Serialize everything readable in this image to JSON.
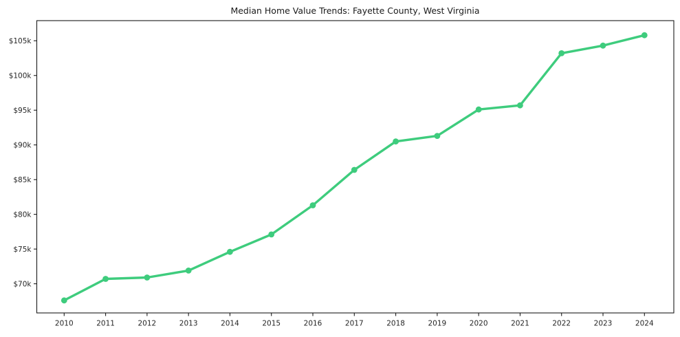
{
  "figure": {
    "background": "#ffffff"
  },
  "chart_data": {
    "type": "line",
    "title": "Median Home Value Trends: Fayette County, West Virginia",
    "categories": [
      "2010",
      "2011",
      "2012",
      "2013",
      "2014",
      "2015",
      "2016",
      "2017",
      "2018",
      "2019",
      "2020",
      "2021",
      "2022",
      "2023",
      "2024"
    ],
    "series": [
      {
        "name": "median-home-value",
        "values": [
          67600,
          70700,
          70900,
          71900,
          74600,
          77100,
          81300,
          86400,
          90500,
          91300,
          95100,
          95700,
          103200,
          104300,
          105800
        ],
        "color": "#3ecc7d",
        "marker": "circle"
      }
    ],
    "xlabel": "",
    "ylabel": "",
    "ytick_values": [
      70000,
      75000,
      80000,
      85000,
      90000,
      95000,
      100000,
      105000
    ],
    "ytick_labels": [
      "$70k",
      "$75k",
      "$80k",
      "$85k",
      "$90k",
      "$95k",
      "$100k",
      "$105k"
    ],
    "ylim": [
      65800,
      107900
    ],
    "grid": false,
    "legend": "none",
    "axis_color": "#1a1a1a",
    "text_color": "#262626"
  }
}
